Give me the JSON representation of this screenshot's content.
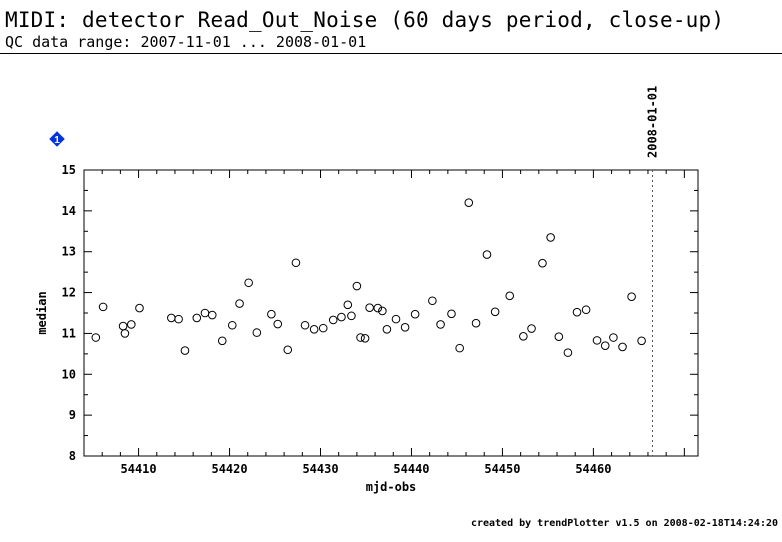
{
  "page": {
    "title": "MIDI: detector Read_Out_Noise (60 days period, close-up)",
    "subtitle": "QC data range: 2007-11-01 ... 2008-01-01",
    "marker_label": "1",
    "footer": "created by trendPlotter v1.5 on 2008-02-18T14:24:20"
  },
  "chart_data": {
    "type": "scatter",
    "xlabel": "mjd-obs",
    "ylabel": "median",
    "xlim": [
      54404,
      54471.5
    ],
    "ylim": [
      8,
      15
    ],
    "xticks": [
      54410,
      54420,
      54430,
      54440,
      54450,
      54460
    ],
    "yticks": [
      8,
      9,
      10,
      11,
      12,
      13,
      14,
      15
    ],
    "grid": false,
    "marker": "open-circle",
    "vline": {
      "x": 54466.5,
      "label": "2008-01-01",
      "style": "dotted"
    },
    "series": [
      {
        "x": [
          54405.3,
          54406.1,
          54408.3,
          54408.5,
          54409.2,
          54410.1,
          54413.6,
          54414.4,
          54415.1,
          54416.4,
          54417.3,
          54418.1,
          54419.2,
          54420.3,
          54421.1,
          54422.1,
          54423.0,
          54424.6,
          54425.3,
          54426.4,
          54427.3,
          54428.3,
          54429.3,
          54430.3,
          54431.4,
          54432.3,
          54433.0,
          54433.4,
          54434.0,
          54434.4,
          54434.9,
          54435.4,
          54436.3,
          54436.8,
          54437.3,
          54438.3,
          54439.3,
          54440.4,
          54442.3,
          54443.2,
          54444.4,
          54445.3,
          54446.3,
          54447.1,
          54448.3,
          54449.2,
          54450.8,
          54452.3,
          54453.2,
          54454.4,
          54455.3,
          54456.2,
          54457.2,
          54458.2,
          54459.2,
          54460.4,
          54461.3,
          54462.2,
          54463.2,
          54464.2,
          54465.3
        ],
        "y": [
          10.9,
          11.65,
          11.18,
          11.0,
          11.22,
          11.62,
          11.38,
          11.35,
          10.58,
          11.38,
          11.5,
          11.45,
          10.82,
          11.2,
          11.73,
          12.24,
          11.02,
          11.47,
          11.23,
          10.6,
          12.73,
          11.2,
          11.1,
          11.13,
          11.33,
          11.4,
          11.7,
          11.43,
          12.16,
          10.9,
          10.88,
          11.63,
          11.62,
          11.55,
          11.1,
          11.35,
          11.15,
          11.47,
          11.8,
          11.22,
          11.48,
          10.64,
          14.2,
          11.25,
          12.93,
          11.53,
          11.92,
          10.93,
          11.12,
          12.72,
          13.35,
          10.92,
          10.53,
          11.52,
          11.58,
          10.83,
          10.7,
          10.9,
          10.67,
          11.9,
          10.82
        ]
      }
    ]
  }
}
